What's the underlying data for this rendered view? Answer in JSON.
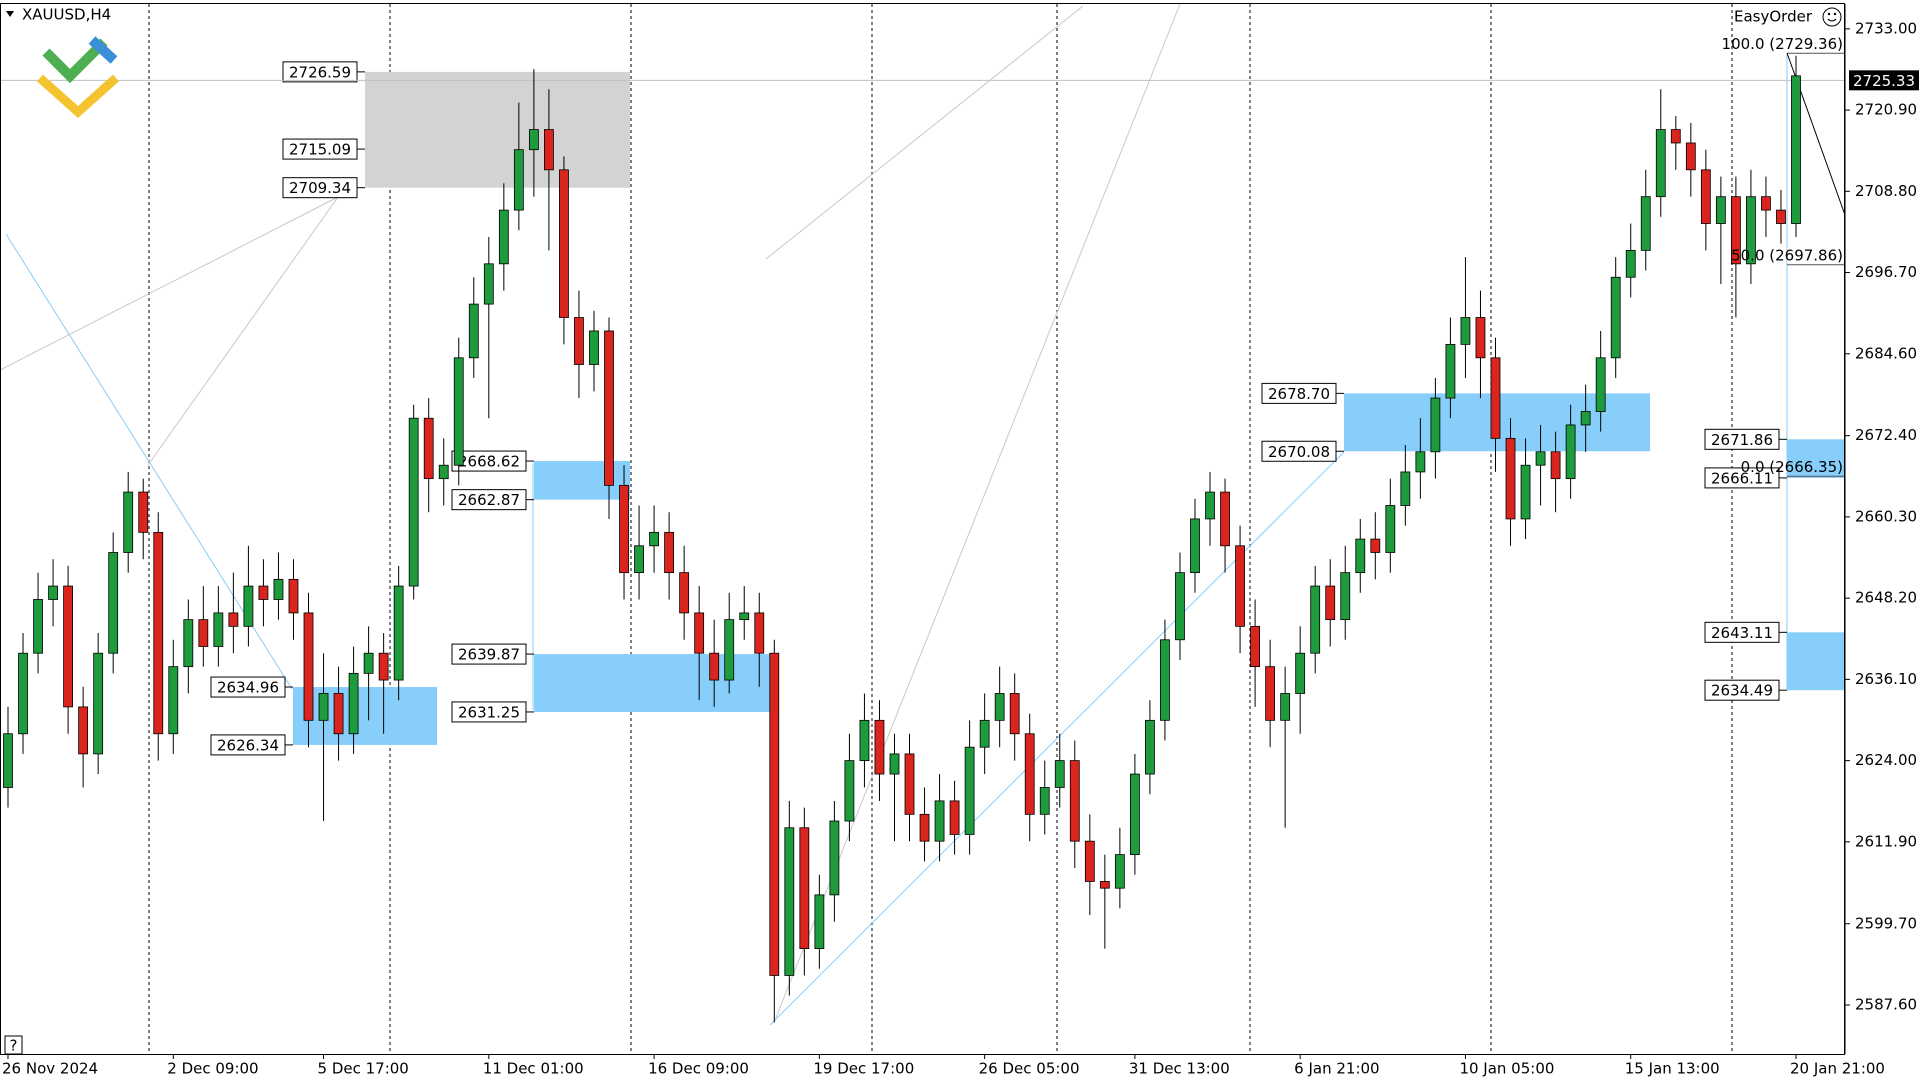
{
  "chart_data": {
    "type": "candlestick",
    "title": "XAUUSD,H4",
    "indicator_label": "EasyOrder",
    "help": "?",
    "up_color": "#1e9b3c",
    "down_color": "#d9251d",
    "grid": false,
    "categories": [
      "26 Nov 2024",
      null,
      null,
      null,
      null,
      null,
      null,
      null,
      null,
      null,
      null,
      "2 Dec 09:00",
      null,
      null,
      null,
      null,
      null,
      null,
      null,
      null,
      null,
      "5 Dec 17:00",
      null,
      null,
      null,
      null,
      null,
      null,
      null,
      null,
      null,
      null,
      "11 Dec 01:00",
      null,
      null,
      null,
      null,
      null,
      null,
      null,
      null,
      null,
      null,
      "16 Dec 09:00",
      null,
      null,
      null,
      null,
      null,
      null,
      null,
      null,
      null,
      null,
      "19 Dec 17:00",
      null,
      null,
      null,
      null,
      null,
      null,
      null,
      null,
      null,
      null,
      "26 Dec 05:00",
      null,
      null,
      null,
      null,
      null,
      null,
      null,
      null,
      null,
      "31 Dec 13:00",
      null,
      null,
      null,
      null,
      null,
      null,
      null,
      null,
      null,
      null,
      "6 Jan 21:00",
      null,
      null,
      null,
      null,
      null,
      null,
      null,
      null,
      null,
      null,
      "10 Jan 05:00",
      null,
      null,
      null,
      null,
      null,
      null,
      null,
      null,
      null,
      null,
      "15 Jan 13:00",
      null,
      null,
      null,
      null,
      null,
      null,
      null,
      null,
      null,
      null,
      "20 Jan 21:00"
    ],
    "open": [
      2620,
      2628,
      2640,
      2648,
      2650,
      2632,
      2625,
      2640,
      2655,
      2664,
      2658,
      2628,
      2638,
      2645,
      2641,
      2646,
      2644,
      2650,
      2648,
      2651,
      2646,
      2630,
      2634,
      2628,
      2637,
      2640,
      2636,
      2650,
      2675,
      2666,
      2668,
      2684,
      2692,
      2698,
      2706,
      2715,
      2718,
      2712,
      2690,
      2683,
      2688,
      2665,
      2652,
      2656,
      2658,
      2652,
      2646,
      2640,
      2636,
      2645,
      2646,
      2640,
      2592,
      2614,
      2596,
      2604,
      2615,
      2624,
      2630,
      2622,
      2625,
      2616,
      2612,
      2618,
      2613,
      2626,
      2630,
      2634,
      2628,
      2616,
      2620,
      2624,
      2612,
      2606,
      2605,
      2610,
      2622,
      2630,
      2642,
      2652,
      2660,
      2664,
      2656,
      2644,
      2638,
      2630,
      2634,
      2640,
      2650,
      2645,
      2652,
      2657,
      2655,
      2662,
      2667,
      2670,
      2678,
      2686,
      2690,
      2684,
      2672,
      2660,
      2668,
      2670,
      2666,
      2674,
      2676,
      2684,
      2696,
      2700,
      2708,
      2718,
      2716,
      2712,
      2704,
      2708,
      2698,
      2708,
      2706,
      2704
    ],
    "high": [
      2632,
      2643,
      2652,
      2654,
      2653,
      2635,
      2643,
      2658,
      2667,
      2666,
      2661,
      2642,
      2648,
      2650,
      2650,
      2652,
      2656,
      2654,
      2655,
      2654,
      2649,
      2640,
      2638,
      2641,
      2644,
      2643,
      2653,
      2677,
      2678,
      2672,
      2687,
      2696,
      2702,
      2710,
      2722,
      2727,
      2724,
      2714,
      2694,
      2691,
      2690,
      2668,
      2662,
      2662,
      2661,
      2656,
      2650,
      2645,
      2649,
      2650,
      2649,
      2642,
      2618,
      2617,
      2607,
      2618,
      2628,
      2634,
      2633,
      2628,
      2628,
      2620,
      2622,
      2621,
      2630,
      2634,
      2638,
      2637,
      2631,
      2624,
      2628,
      2627,
      2616,
      2610,
      2614,
      2625,
      2633,
      2645,
      2655,
      2663,
      2667,
      2666,
      2659,
      2648,
      2642,
      2638,
      2644,
      2653,
      2654,
      2656,
      2660,
      2661,
      2666,
      2671,
      2675,
      2681,
      2690,
      2699,
      2694,
      2687,
      2675,
      2672,
      2674,
      2673,
      2677,
      2680,
      2688,
      2699,
      2704,
      2712,
      2724,
      2720,
      2719,
      2715,
      2711,
      2711,
      2712,
      2711,
      2709,
      2729
    ],
    "low": [
      2617,
      2625,
      2637,
      2644,
      2628,
      2620,
      2622,
      2637,
      2652,
      2654,
      2624,
      2625,
      2634,
      2638,
      2638,
      2640,
      2641,
      2644,
      2645,
      2642,
      2626,
      2615,
      2624,
      2625,
      2630,
      2628,
      2633,
      2648,
      2661,
      2662,
      2665,
      2681,
      2675,
      2694,
      2703,
      2708,
      2700,
      2686,
      2678,
      2679,
      2660,
      2648,
      2648,
      2652,
      2648,
      2642,
      2633,
      2632,
      2634,
      2642,
      2635,
      2585,
      2589,
      2592,
      2593,
      2600,
      2612,
      2620,
      2618,
      2612,
      2612,
      2609,
      2609,
      2610,
      2610,
      2622,
      2626,
      2624,
      2612,
      2613,
      2617,
      2608,
      2601,
      2596,
      2602,
      2607,
      2619,
      2627,
      2639,
      2649,
      2656,
      2652,
      2640,
      2632,
      2626,
      2614,
      2628,
      2637,
      2641,
      2642,
      2649,
      2651,
      2652,
      2659,
      2663,
      2666,
      2675,
      2681,
      2678,
      2667,
      2656,
      2657,
      2662,
      2661,
      2663,
      2670,
      2673,
      2681,
      2693,
      2697,
      2705,
      2712,
      2708,
      2700,
      2695,
      2690,
      2695,
      2702,
      2701,
      2702
    ],
    "close": [
      2628,
      2640,
      2648,
      2650,
      2632,
      2625,
      2640,
      2655,
      2664,
      2658,
      2628,
      2638,
      2645,
      2641,
      2646,
      2644,
      2650,
      2648,
      2651,
      2646,
      2630,
      2634,
      2628,
      2637,
      2640,
      2636,
      2650,
      2675,
      2666,
      2668,
      2684,
      2692,
      2698,
      2706,
      2715,
      2718,
      2712,
      2690,
      2683,
      2688,
      2665,
      2652,
      2656,
      2658,
      2652,
      2646,
      2640,
      2636,
      2645,
      2646,
      2640,
      2592,
      2614,
      2596,
      2604,
      2615,
      2624,
      2630,
      2622,
      2625,
      2616,
      2612,
      2618,
      2613,
      2626,
      2630,
      2634,
      2628,
      2616,
      2620,
      2624,
      2612,
      2606,
      2605,
      2610,
      2622,
      2630,
      2642,
      2652,
      2660,
      2664,
      2656,
      2644,
      2638,
      2630,
      2634,
      2640,
      2650,
      2645,
      2652,
      2657,
      2655,
      2662,
      2667,
      2670,
      2678,
      2686,
      2690,
      2684,
      2672,
      2660,
      2668,
      2670,
      2666,
      2674,
      2676,
      2684,
      2696,
      2700,
      2708,
      2718,
      2716,
      2712,
      2704,
      2708,
      2698,
      2708,
      2706,
      2704,
      2726
    ],
    "ylim": [
      2580.3,
      2736.7
    ],
    "yticks": [
      {
        "value": 2733,
        "label": "2733.00"
      },
      {
        "value": 2720.9,
        "label": "2720.90"
      },
      {
        "value": 2708.8,
        "label": "2708.80"
      },
      {
        "value": 2696.7,
        "label": "2696.70"
      },
      {
        "value": 2684.6,
        "label": "2684.60"
      },
      {
        "value": 2672.4,
        "label": "2672.40"
      },
      {
        "value": 2660.3,
        "label": "2660.30"
      },
      {
        "value": 2648.2,
        "label": "2648.20"
      },
      {
        "value": 2636.1,
        "label": "2636.10"
      },
      {
        "value": 2624,
        "label": "2624.00"
      },
      {
        "value": 2611.9,
        "label": "2611.90"
      },
      {
        "value": 2599.7,
        "label": "2599.70"
      },
      {
        "value": 2587.6,
        "label": "2587.60"
      }
    ],
    "current_price": 2725.33,
    "zones": [
      {
        "color": "#d3d3d3",
        "levels": [
          2726.59,
          2715.09,
          2709.34
        ]
      },
      {
        "color": "#87cefa",
        "levels": [
          2634.96,
          2626.34
        ]
      },
      {
        "color": "#87cefa",
        "levels": [
          2668.62,
          2662.87
        ]
      },
      {
        "color": "#87cefa",
        "levels": [
          2639.87,
          2631.25
        ]
      },
      {
        "color": "#87cefa",
        "levels": [
          {
            "value": 2678.7,
            "label": "2678.70"
          },
          2670.08
        ]
      },
      {
        "color": "#87cefa",
        "levels": [
          2671.86,
          2666.11
        ]
      },
      {
        "color": "#87cefa",
        "levels": [
          2643.11,
          2634.49
        ]
      }
    ],
    "fib": [
      {
        "label": "100.0 (2729.36)",
        "price": 2729.36
      },
      {
        "label": "50.0 (2697.86)",
        "price": 2697.86
      },
      {
        "label": "0.0 (2666.35)",
        "price": 2666.35
      }
    ]
  }
}
